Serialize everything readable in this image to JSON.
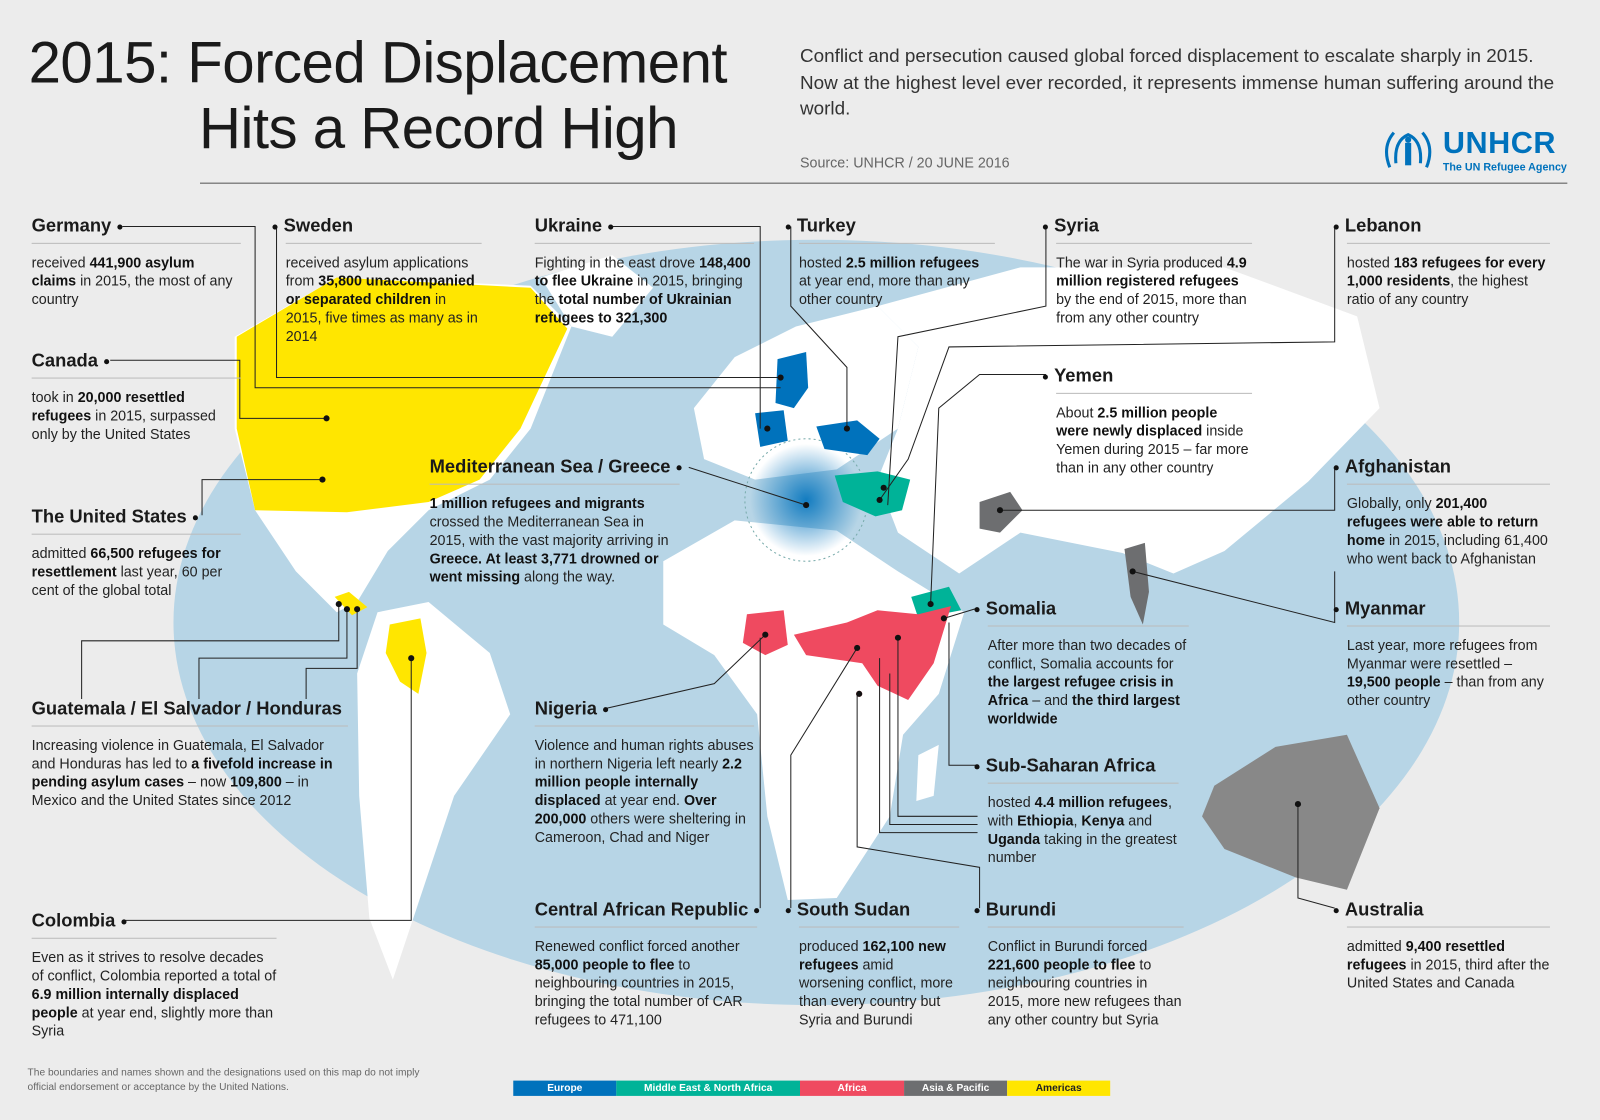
{
  "header": {
    "title_line1": "2015: Forced Displacement",
    "title_line2": "Hits a Record High",
    "intro": "Conflict and persecution caused global forced displacement to escalate sharply in 2015. Now at the highest level ever recorded, it represents immense human suffering around the world.",
    "source": "Source: UNHCR / 20 JUNE 2016",
    "logo_word": "UNHCR",
    "logo_tagline": "The UN Refugee Agency"
  },
  "colors": {
    "europe": "#0072bc",
    "mena": "#00b398",
    "africa": "#ef4a60",
    "asia": "#6d6e70",
    "americas": "#ffe600",
    "ocean": "#b7d5e6",
    "land": "#ffffff"
  },
  "cards": [
    {
      "title": "Germany",
      "segs": [
        {
          "t": "received "
        },
        {
          "t": "441,900 asylum claims",
          "b": true
        },
        {
          "t": " in 2015, the most of any country"
        }
      ]
    },
    {
      "title": "Sweden",
      "segs": [
        {
          "t": "received asylum applications from "
        },
        {
          "t": "35,800 unaccompanied or separated children",
          "b": true
        },
        {
          "t": " in 2015, five times as many as in 2014"
        }
      ]
    },
    {
      "title": "Ukraine",
      "segs": [
        {
          "t": "Fighting in the east drove "
        },
        {
          "t": "148,400 to flee Ukraine",
          "b": true
        },
        {
          "t": " in 2015, bringing the "
        },
        {
          "t": "total number of Ukrainian refugees to 321,300",
          "b": true
        }
      ]
    },
    {
      "title": "Turkey",
      "segs": [
        {
          "t": "hosted "
        },
        {
          "t": "2.5 million refugees",
          "b": true
        },
        {
          "t": " at year end, more than any other country"
        }
      ]
    },
    {
      "title": "Syria",
      "segs": [
        {
          "t": "The war in Syria produced "
        },
        {
          "t": "4.9 million registered refugees",
          "b": true
        },
        {
          "t": " by the end of 2015, more than from any other country"
        }
      ]
    },
    {
      "title": "Lebanon",
      "segs": [
        {
          "t": "hosted "
        },
        {
          "t": "183 refugees for every 1,000 residents",
          "b": true
        },
        {
          "t": ", the highest ratio of any country"
        }
      ]
    },
    {
      "title": "Canada",
      "segs": [
        {
          "t": "took in "
        },
        {
          "t": "20,000 resettled refugees",
          "b": true
        },
        {
          "t": " in 2015, surpassed only by the United States"
        }
      ]
    },
    {
      "title": "Yemen",
      "segs": [
        {
          "t": "About "
        },
        {
          "t": "2.5 million people were newly displaced",
          "b": true
        },
        {
          "t": " inside Yemen during 2015 – far more than in any other country"
        }
      ]
    },
    {
      "title": "Mediterranean Sea / Greece",
      "segs": [
        {
          "t": "1 million refugees and migrants",
          "b": true
        },
        {
          "t": " crossed the Mediterranean Sea in 2015, with the vast majority arriving in "
        },
        {
          "t": "Greece. At least 3,771 drowned or went missing",
          "b": true
        },
        {
          "t": " along the way."
        }
      ]
    },
    {
      "title": "Afghanistan",
      "segs": [
        {
          "t": "Globally, only "
        },
        {
          "t": "201,400 refugees were able to return home",
          "b": true
        },
        {
          "t": " in 2015, including 61,400 who went back to Afghanistan"
        }
      ]
    },
    {
      "title": "The United States",
      "segs": [
        {
          "t": "admitted "
        },
        {
          "t": "66,500 refugees for resettlement",
          "b": true
        },
        {
          "t": " last year, 60 per cent of the global total"
        }
      ]
    },
    {
      "title": "Somalia",
      "segs": [
        {
          "t": "After more than two decades of conflict, Somalia accounts for "
        },
        {
          "t": "the largest refugee crisis in Africa",
          "b": true
        },
        {
          "t": " – and "
        },
        {
          "t": "the third largest worldwide",
          "b": true
        }
      ]
    },
    {
      "title": "Myanmar",
      "segs": [
        {
          "t": "Last year, more refugees from Myanmar were resettled – "
        },
        {
          "t": "19,500 people",
          "b": true
        },
        {
          "t": " – than from any other country"
        }
      ]
    },
    {
      "title": "Guatemala / El Salvador / Honduras",
      "segs": [
        {
          "t": "Increasing violence in Guatemala, El Salvador and Honduras has led to "
        },
        {
          "t": "a fivefold increase in pending asylum cases",
          "b": true
        },
        {
          "t": " – now "
        },
        {
          "t": "109,800",
          "b": true
        },
        {
          "t": " – in Mexico and the United States since 2012"
        }
      ]
    },
    {
      "title": "Nigeria",
      "segs": [
        {
          "t": "Violence and human rights abuses in northern Nigeria left nearly "
        },
        {
          "t": "2.2 million people internally displaced",
          "b": true
        },
        {
          "t": " at year end. "
        },
        {
          "t": "Over 200,000",
          "b": true
        },
        {
          "t": " others were sheltering in Cameroon, Chad and Niger"
        }
      ]
    },
    {
      "title": "Sub-Saharan Africa",
      "segs": [
        {
          "t": "hosted "
        },
        {
          "t": "4.4 million refugees",
          "b": true
        },
        {
          "t": ", with "
        },
        {
          "t": "Ethiopia",
          "b": true
        },
        {
          "t": ", "
        },
        {
          "t": "Kenya",
          "b": true
        },
        {
          "t": " and "
        },
        {
          "t": "Uganda",
          "b": true
        },
        {
          "t": " taking in the greatest number"
        }
      ]
    },
    {
      "title": "Colombia",
      "segs": [
        {
          "t": "Even as it strives to resolve decades of conflict, Colombia reported a total of "
        },
        {
          "t": "6.9 million internally displaced people",
          "b": true
        },
        {
          "t": " at year end, slightly more than Syria"
        }
      ]
    },
    {
      "title": "Central African Republic",
      "segs": [
        {
          "t": "Renewed conflict forced another "
        },
        {
          "t": "85,000 people to flee",
          "b": true
        },
        {
          "t": " to neighbouring countries in 2015, bringing the total number of CAR refugees to 471,100"
        }
      ]
    },
    {
      "title": "South Sudan",
      "segs": [
        {
          "t": "produced "
        },
        {
          "t": "162,100 new refugees",
          "b": true
        },
        {
          "t": " amid worsening conflict, more than every country but Syria and Burundi"
        }
      ]
    },
    {
      "title": "Burundi",
      "segs": [
        {
          "t": "Conflict in Burundi forced "
        },
        {
          "t": "221,600 people to flee",
          "b": true
        },
        {
          "t": " to neighbouring countries in 2015, more new refugees than any other country but Syria"
        }
      ]
    },
    {
      "title": "Australia",
      "segs": [
        {
          "t": "admitted "
        },
        {
          "t": "9,400 resettled refugees",
          "b": true
        },
        {
          "t": " in 2015, third after the United States and Canada"
        }
      ]
    }
  ],
  "footer": {
    "disclaimer_line1": "The boundaries and names shown and the designations used on this map do not imply",
    "disclaimer_line2": "official endorsement or acceptance by the United Nations.",
    "legend": [
      {
        "label": "Europe",
        "color": "#0072bc"
      },
      {
        "label": "Middle East & North Africa",
        "color": "#00b398"
      },
      {
        "label": "Africa",
        "color": "#ef4a60"
      },
      {
        "label": "Asia & Pacific",
        "color": "#6d6e70"
      },
      {
        "label": "Americas",
        "color": "#ffe600"
      }
    ]
  }
}
